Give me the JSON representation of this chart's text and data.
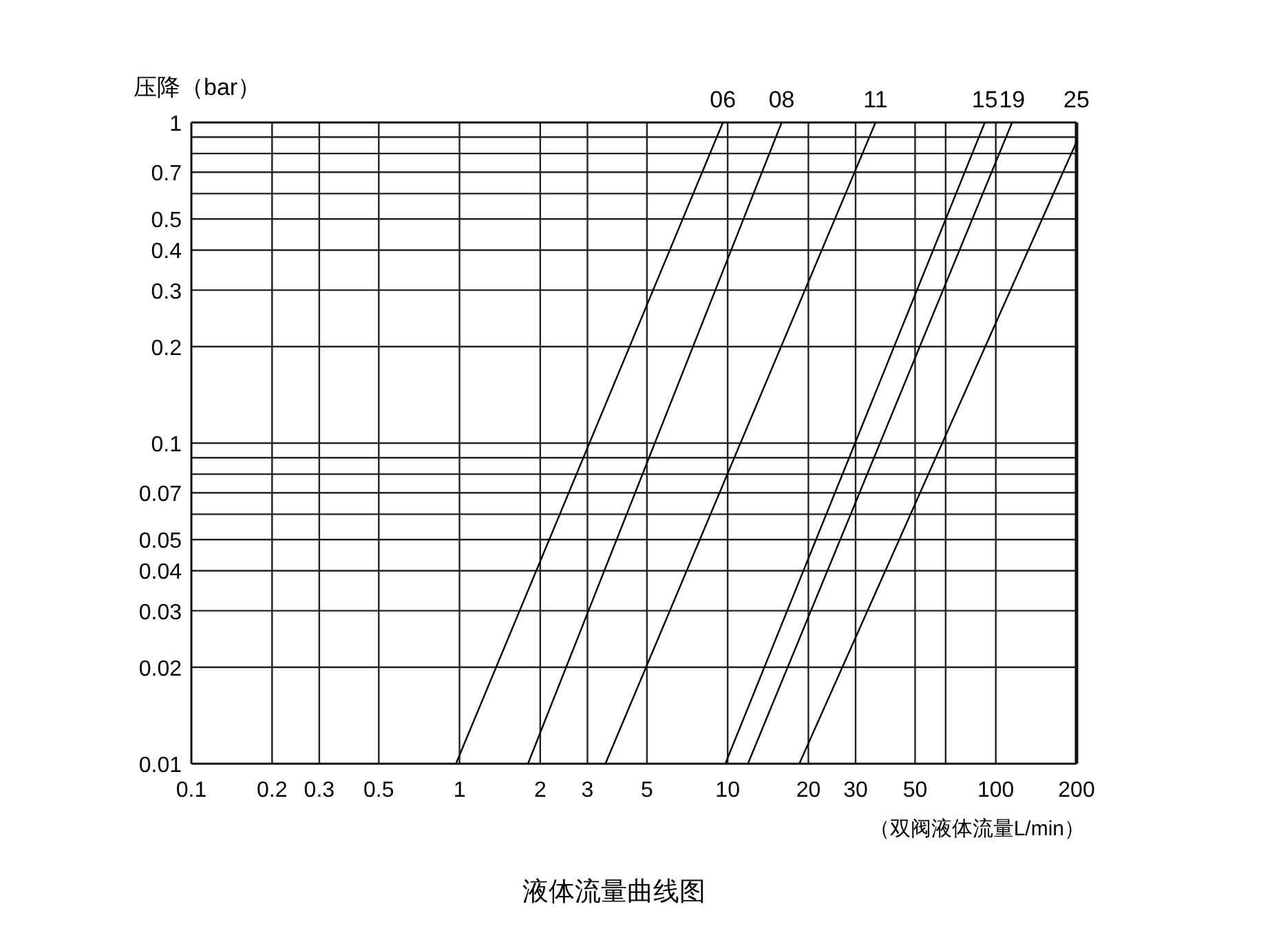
{
  "chart_data": {
    "type": "line",
    "title": "液体流量曲线图",
    "xlabel": "（双阀液体流量L/min）",
    "ylabel": "压降（bar）",
    "log": "xy",
    "grid": true,
    "xlim": [
      0.1,
      200
    ],
    "ylim": [
      0.01,
      1
    ],
    "xticks": [
      0.1,
      0.2,
      0.3,
      0.5,
      1,
      2,
      3,
      5,
      10,
      20,
      30,
      50,
      {
        "value": 65,
        "label": null
      },
      100,
      200
    ],
    "yticks": [
      0.01,
      0.02,
      0.03,
      0.04,
      0.05,
      {
        "value": 0.06,
        "label": null
      },
      0.07,
      {
        "value": 0.08,
        "label": null
      },
      {
        "value": 0.09,
        "label": null
      },
      0.1,
      0.2,
      0.3,
      0.4,
      0.5,
      {
        "value": 0.6,
        "label": null
      },
      0.7,
      {
        "value": 0.8,
        "label": null
      },
      {
        "value": 0.9,
        "label": null
      },
      1
    ],
    "series": [
      {
        "name": "06",
        "color": "#000000",
        "x": [
          0.97,
          9.6
        ],
        "values": [
          0.01,
          1
        ]
      },
      {
        "name": "08",
        "color": "#000000",
        "x": [
          1.8,
          15.9
        ],
        "values": [
          0.01,
          1
        ]
      },
      {
        "name": "11",
        "color": "#000000",
        "x": [
          3.5,
          35.6
        ],
        "values": [
          0.01,
          1
        ]
      },
      {
        "name": "15",
        "color": "#000000",
        "x": [
          9.8,
          91
        ],
        "values": [
          0.01,
          1
        ]
      },
      {
        "name": "19",
        "color": "#000000",
        "x": [
          11.9,
          115
        ],
        "values": [
          0.01,
          1
        ]
      },
      {
        "name": "25",
        "color": "#000000",
        "x": [
          18.5,
          200
        ],
        "values": [
          0.01,
          0.87
        ]
      }
    ]
  }
}
